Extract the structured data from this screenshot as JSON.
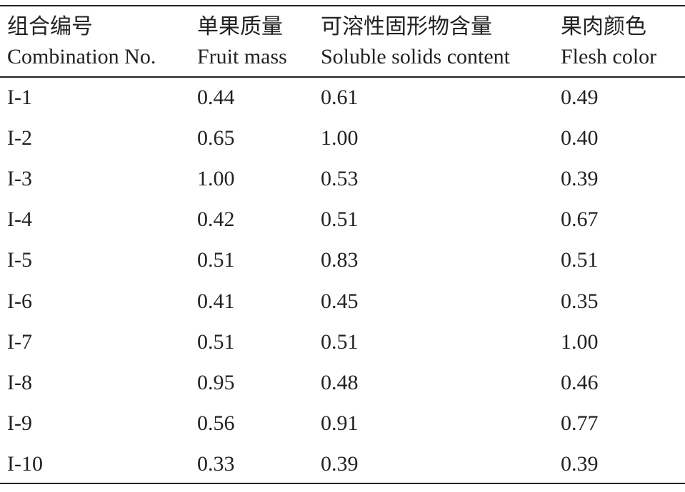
{
  "table": {
    "headers": [
      {
        "zh": "组合编号",
        "en": "Combination No."
      },
      {
        "zh": "单果质量",
        "en": "Fruit mass"
      },
      {
        "zh": "可溶性固形物含量",
        "en": "Soluble solids content"
      },
      {
        "zh": "果肉颜色",
        "en": "Flesh color"
      }
    ],
    "rows": [
      [
        "I-1",
        "0.44",
        "0.61",
        "0.49"
      ],
      [
        "I-2",
        "0.65",
        "1.00",
        "0.40"
      ],
      [
        "I-3",
        "1.00",
        "0.53",
        "0.39"
      ],
      [
        "I-4",
        "0.42",
        "0.51",
        "0.67"
      ],
      [
        "I-5",
        "0.51",
        "0.83",
        "0.51"
      ],
      [
        "I-6",
        "0.41",
        "0.45",
        "0.35"
      ],
      [
        "I-7",
        "0.51",
        "0.51",
        "1.00"
      ],
      [
        "I-8",
        "0.95",
        "0.48",
        "0.46"
      ],
      [
        "I-9",
        "0.56",
        "0.91",
        "0.77"
      ],
      [
        "I-10",
        "0.33",
        "0.39",
        "0.39"
      ]
    ]
  }
}
